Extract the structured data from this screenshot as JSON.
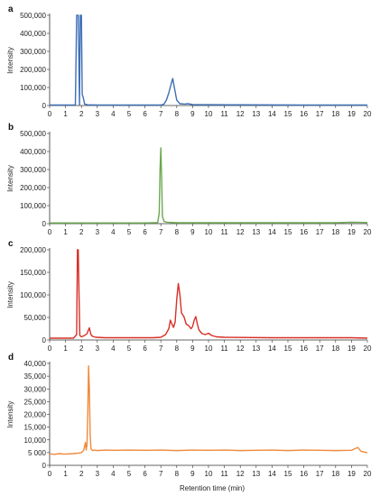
{
  "xlabel": "Retention time (min)",
  "chart_data": [
    {
      "type": "line",
      "panel": "a",
      "ylabel": "Intensity",
      "xlim": [
        0,
        20
      ],
      "ylim": [
        0,
        500000
      ],
      "yticks": [
        0,
        100000,
        200000,
        300000,
        400000,
        500000
      ],
      "ytick_labels": [
        "0",
        "100,000",
        "200,000",
        "300,000",
        "400,000",
        "500,000"
      ],
      "xticks": [
        0,
        1,
        2,
        3,
        4,
        5,
        6,
        7,
        8,
        9,
        10,
        11,
        12,
        13,
        14,
        15,
        16,
        17,
        18,
        19,
        20
      ],
      "series": [
        {
          "color": "#3d6fb6",
          "x": [
            0,
            1.5,
            1.62,
            1.7,
            1.75,
            1.8,
            1.88,
            1.93,
            2.0,
            2.05,
            2.1,
            2.2,
            2.4,
            3,
            5,
            7.0,
            7.2,
            7.35,
            7.5,
            7.65,
            7.75,
            7.85,
            8.0,
            8.2,
            8.5,
            8.7,
            9,
            12,
            16,
            20
          ],
          "y": [
            3000,
            3000,
            4000,
            500000,
            500000,
            500000,
            4000,
            500000,
            500000,
            60000,
            50000,
            8000,
            4000,
            3000,
            3000,
            3000,
            8000,
            30000,
            70000,
            120000,
            150000,
            100000,
            30000,
            10000,
            8000,
            10000,
            5000,
            4000,
            3000,
            3000
          ]
        }
      ]
    },
    {
      "type": "line",
      "panel": "b",
      "ylabel": "Intensity",
      "xlim": [
        0,
        20
      ],
      "ylim": [
        0,
        500000
      ],
      "yticks": [
        0,
        100000,
        200000,
        300000,
        400000,
        500000
      ],
      "ytick_labels": [
        "0",
        "100,000",
        "200,000",
        "300,000",
        "400,000",
        "500,000"
      ],
      "xticks": [
        0,
        1,
        2,
        3,
        4,
        5,
        6,
        7,
        8,
        9,
        10,
        11,
        12,
        13,
        14,
        15,
        16,
        17,
        18,
        19,
        20
      ],
      "series": [
        {
          "color": "#6aa84f",
          "x": [
            0,
            6,
            6.8,
            6.9,
            6.95,
            7.0,
            7.05,
            7.1,
            7.2,
            7.4,
            8,
            10,
            18,
            19,
            19.5,
            20
          ],
          "y": [
            4000,
            4000,
            6000,
            60000,
            300000,
            420000,
            250000,
            40000,
            12000,
            8000,
            5000,
            5000,
            5000,
            8000,
            7000,
            6000
          ]
        }
      ]
    },
    {
      "type": "line",
      "panel": "c",
      "ylabel": "Intensity",
      "xlim": [
        0,
        20
      ],
      "ylim": [
        0,
        200000
      ],
      "yticks": [
        0,
        50000,
        100000,
        150000,
        200000
      ],
      "ytick_labels": [
        "0",
        "50,000",
        "100,000",
        "150,000",
        "200,000"
      ],
      "xticks": [
        0,
        1,
        2,
        3,
        4,
        5,
        6,
        7,
        8,
        9,
        10,
        11,
        12,
        13,
        14,
        15,
        16,
        17,
        18,
        19,
        20
      ],
      "series": [
        {
          "color": "#d73027",
          "x": [
            0,
            1.5,
            1.7,
            1.75,
            1.8,
            1.85,
            1.9,
            2.0,
            2.2,
            2.35,
            2.5,
            2.6,
            2.7,
            2.9,
            3.5,
            5,
            6.5,
            7.0,
            7.3,
            7.5,
            7.6,
            7.7,
            7.8,
            7.9,
            8.0,
            8.1,
            8.2,
            8.3,
            8.45,
            8.6,
            8.75,
            8.9,
            9.0,
            9.1,
            9.2,
            9.3,
            9.4,
            9.5,
            9.6,
            9.8,
            10.0,
            10.2,
            10.5,
            11,
            14,
            17,
            19,
            20
          ],
          "y": [
            4000,
            4000,
            12000,
            200000,
            200000,
            100000,
            10000,
            7000,
            10000,
            14000,
            27000,
            12000,
            8000,
            6000,
            5000,
            5000,
            5000,
            6000,
            12000,
            25000,
            44000,
            35000,
            28000,
            40000,
            90000,
            125000,
            100000,
            60000,
            52000,
            35000,
            32000,
            25000,
            30000,
            44000,
            52000,
            35000,
            22000,
            18000,
            14000,
            12000,
            15000,
            10000,
            7000,
            6000,
            5000,
            5000,
            5000,
            4000
          ]
        }
      ]
    },
    {
      "type": "line",
      "panel": "d",
      "ylabel": "Intensity",
      "xlim": [
        0,
        20
      ],
      "ylim": [
        0,
        40000
      ],
      "yticks": [
        0,
        5000,
        10000,
        15000,
        20000,
        25000,
        30000,
        35000,
        40000
      ],
      "ytick_labels": [
        "0",
        "5 000",
        "10,000",
        "15,000",
        "20,000",
        "25,000",
        "30,000",
        "35,000",
        "40,000"
      ],
      "xticks": [
        0,
        1,
        2,
        3,
        4,
        5,
        6,
        7,
        8,
        9,
        10,
        11,
        12,
        13,
        14,
        15,
        16,
        17,
        18,
        19,
        20
      ],
      "series": [
        {
          "color": "#ef8a3c",
          "x": [
            0,
            0.3,
            0.6,
            0.9,
            1.2,
            1.5,
            1.8,
            2.0,
            2.15,
            2.25,
            2.3,
            2.35,
            2.4,
            2.45,
            2.5,
            2.55,
            2.6,
            2.7,
            2.8,
            3.0,
            3.5,
            4,
            5,
            6,
            7,
            8,
            9,
            10,
            11,
            12,
            13,
            14,
            15,
            16,
            17,
            18,
            19,
            19.2,
            19.4,
            19.6,
            19.8,
            20
          ],
          "y": [
            4500,
            4300,
            4600,
            4400,
            4500,
            4600,
            4800,
            5000,
            6000,
            9000,
            6000,
            8000,
            20000,
            39000,
            30000,
            12000,
            6500,
            5800,
            6000,
            5800,
            6000,
            5900,
            6000,
            5900,
            6000,
            5800,
            6000,
            5900,
            6000,
            5800,
            5900,
            6000,
            5800,
            6000,
            5900,
            5800,
            5900,
            6500,
            7000,
            5500,
            5200,
            5000
          ]
        }
      ]
    }
  ]
}
